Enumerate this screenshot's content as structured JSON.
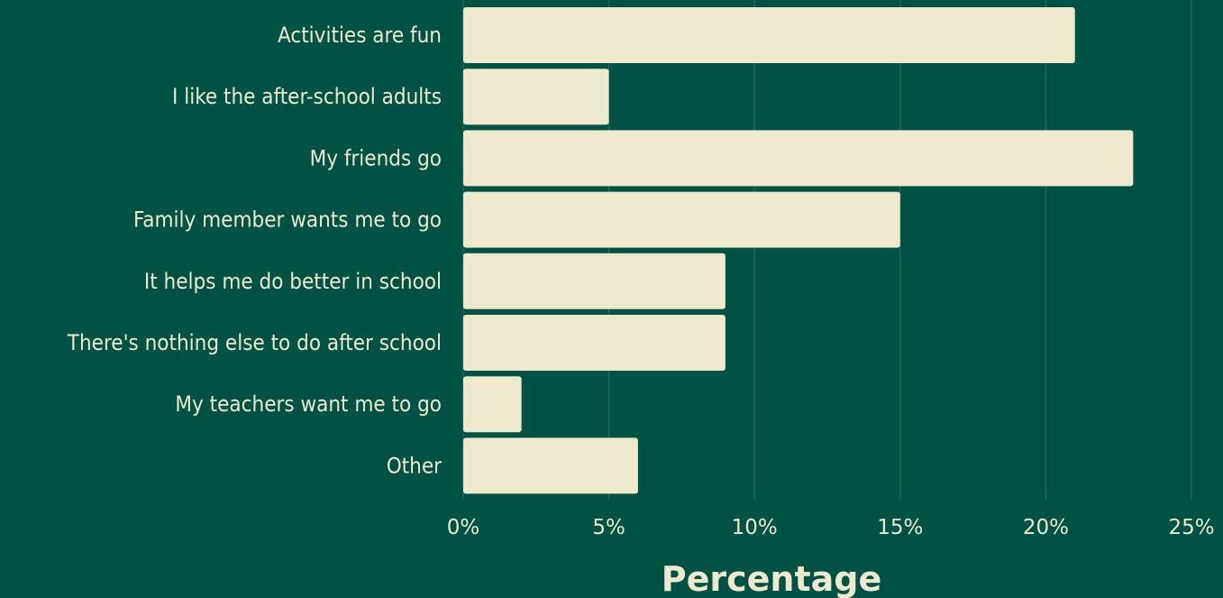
{
  "chart_data": {
    "type": "bar",
    "orientation": "horizontal",
    "categories": [
      "Activities are fun",
      "I like the after-school adults",
      "My friends go",
      "Family member wants me to go",
      "It helps me do better in school",
      "There's nothing else to do after school",
      "My teachers want me to go",
      "Other"
    ],
    "values": [
      21,
      5,
      23,
      15,
      9,
      9,
      2,
      6
    ],
    "xlabel": "Percentage",
    "xlim": [
      0,
      25
    ],
    "xticks": [
      "0%",
      "5%",
      "10%",
      "15%",
      "20%",
      "25%"
    ],
    "grid": true
  },
  "colors": {
    "background": "#005245",
    "bar": "#eee8cc",
    "grid": "#2c7063",
    "text": "#eee8cc"
  }
}
